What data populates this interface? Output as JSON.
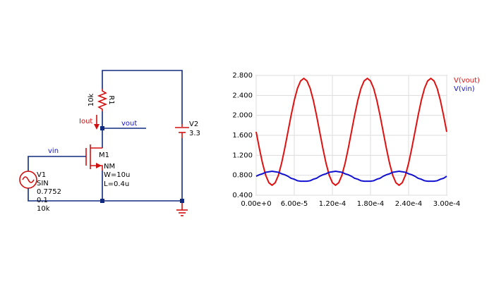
{
  "circuit": {
    "r1_name": "R1",
    "r1_value": "10k",
    "iout": "Iout",
    "vout": "vout",
    "vin": "vin",
    "m1_name": "M1",
    "m1_model": "NM",
    "m1_w": "W=10u",
    "m1_l": "L=0.4u",
    "v1_name": "V1",
    "v1_type": "SIN",
    "v1_offset": "0.7752",
    "v1_amp": "0.1",
    "v1_freq": "10k",
    "v2_name": "V2",
    "v2_value": "3.3"
  },
  "chart_data": {
    "type": "line",
    "x": [
      0,
      5e-06,
      1e-05,
      1.5e-05,
      2e-05,
      2.5e-05,
      3e-05,
      3.5e-05,
      4e-05,
      4.5e-05,
      5e-05,
      5.5e-05,
      6e-05,
      6.5e-05,
      7e-05,
      7.5e-05,
      8e-05,
      8.5e-05,
      9e-05,
      9.5e-05,
      0.0001,
      0.000105,
      0.00011,
      0.000115,
      0.00012,
      0.000125,
      0.00013,
      0.000135,
      0.00014,
      0.000145,
      0.00015,
      0.000155,
      0.00016,
      0.000165,
      0.00017,
      0.000175,
      0.00018,
      0.000185,
      0.00019,
      0.000195,
      0.0002,
      0.000205,
      0.00021,
      0.000215,
      0.00022,
      0.000225,
      0.00023,
      0.000235,
      0.00024,
      0.000245,
      0.00025,
      0.000255,
      0.00026,
      0.000265,
      0.00027,
      0.000275,
      0.00028,
      0.000285,
      0.00029,
      0.000295,
      0.0003
    ],
    "series": [
      {
        "name": "V(vout)",
        "color": "#e01010",
        "values": [
          1.67,
          1.34,
          1.04,
          0.8,
          0.65,
          0.6,
          0.65,
          0.8,
          1.04,
          1.34,
          1.67,
          2.0,
          2.3,
          2.54,
          2.69,
          2.74,
          2.69,
          2.54,
          2.3,
          2.0,
          1.67,
          1.34,
          1.04,
          0.8,
          0.65,
          0.6,
          0.65,
          0.8,
          1.04,
          1.34,
          1.67,
          2.0,
          2.3,
          2.54,
          2.69,
          2.74,
          2.69,
          2.54,
          2.3,
          2.0,
          1.67,
          1.34,
          1.04,
          0.8,
          0.65,
          0.6,
          0.65,
          0.8,
          1.04,
          1.34,
          1.67,
          2.0,
          2.3,
          2.54,
          2.69,
          2.74,
          2.69,
          2.54,
          2.3,
          2.0,
          1.67
        ]
      },
      {
        "name": "V(vin)",
        "color": "#1010d0",
        "values": [
          0.78,
          0.81,
          0.83,
          0.86,
          0.87,
          0.88,
          0.87,
          0.86,
          0.83,
          0.81,
          0.78,
          0.74,
          0.72,
          0.69,
          0.68,
          0.68,
          0.68,
          0.69,
          0.72,
          0.74,
          0.78,
          0.81,
          0.83,
          0.86,
          0.87,
          0.88,
          0.87,
          0.86,
          0.83,
          0.81,
          0.78,
          0.74,
          0.72,
          0.69,
          0.68,
          0.68,
          0.68,
          0.69,
          0.72,
          0.74,
          0.78,
          0.81,
          0.83,
          0.86,
          0.87,
          0.88,
          0.87,
          0.86,
          0.83,
          0.81,
          0.78,
          0.74,
          0.72,
          0.69,
          0.68,
          0.68,
          0.68,
          0.69,
          0.72,
          0.74,
          0.78
        ]
      }
    ],
    "xlim": [
      0,
      0.0003
    ],
    "xticks": [
      {
        "value": 0,
        "label": "0.00e+0"
      },
      {
        "value": 6e-05,
        "label": "6.00e-5"
      },
      {
        "value": 0.00012,
        "label": "1.20e-4"
      },
      {
        "value": 0.00018,
        "label": "1.80e-4"
      },
      {
        "value": 0.00024,
        "label": "2.40e-4"
      },
      {
        "value": 0.0003,
        "label": "3.00e-4"
      }
    ],
    "ylim": [
      0.4,
      2.8
    ],
    "yticks": [
      {
        "value": 0.4,
        "label": "0.400"
      },
      {
        "value": 0.8,
        "label": "0.800"
      },
      {
        "value": 1.2,
        "label": "1.200"
      },
      {
        "value": 1.6,
        "label": "1.600"
      },
      {
        "value": 2.0,
        "label": "2.000"
      },
      {
        "value": 2.4,
        "label": "2.400"
      },
      {
        "value": 2.8,
        "label": "2.800"
      }
    ],
    "grid": true
  }
}
